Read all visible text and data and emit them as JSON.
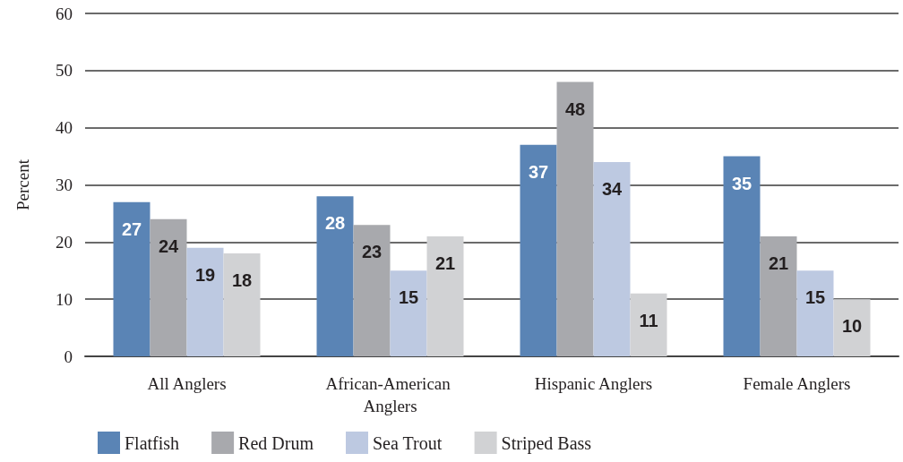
{
  "chart_data": {
    "type": "bar",
    "ylabel": "Percent",
    "categories": [
      "All Anglers",
      "African-American Anglers",
      "Hispanic Anglers",
      "Female Anglers"
    ],
    "series": [
      {
        "name": "Flatfish",
        "color": "#5a84b5",
        "values": [
          27,
          28,
          37,
          35
        ]
      },
      {
        "name": "Red Drum",
        "color": "#a8a9ad",
        "values": [
          24,
          23,
          48,
          21
        ]
      },
      {
        "name": "Sea Trout",
        "color": "#bdc9e1",
        "values": [
          19,
          15,
          34,
          15
        ]
      },
      {
        "name": "Striped Bass",
        "color": "#d1d2d4",
        "values": [
          18,
          21,
          11,
          10
        ]
      }
    ],
    "ylim": [
      0,
      60
    ],
    "yticks": [
      0,
      10,
      20,
      30,
      40,
      50,
      60
    ],
    "grid": "y",
    "legend": "bottom",
    "data_labels": true
  }
}
